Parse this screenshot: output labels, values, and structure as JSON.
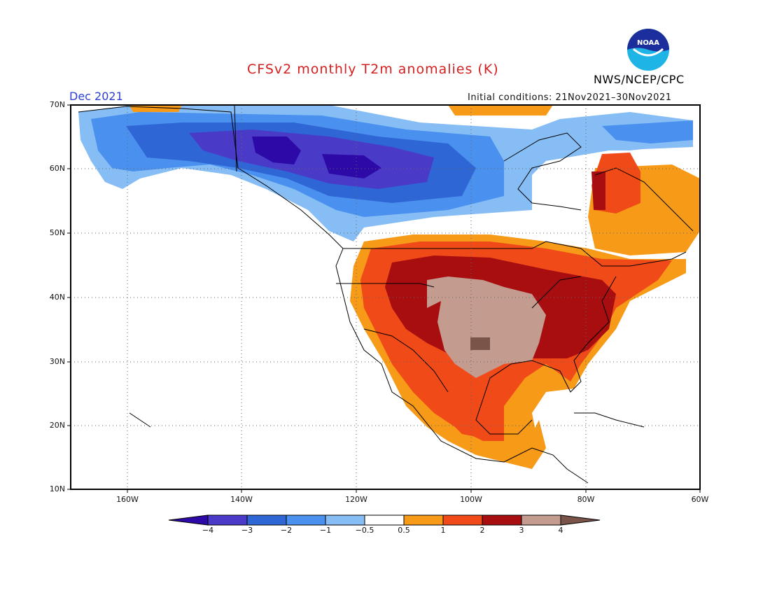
{
  "title": "CFSv2 monthly T2m anomalies (K)",
  "month": "Dec 2021",
  "agency": "NWS/NCEP/CPC",
  "init_conditions": "Initial conditions: 21Nov2021–30Nov2021",
  "logo": {
    "icon": "noaa-logo-icon",
    "text": "NOAA"
  },
  "lat_labels": [
    "70N",
    "60N",
    "50N",
    "40N",
    "30N",
    "20N",
    "10N"
  ],
  "lon_labels": [
    "160W",
    "140W",
    "120W",
    "100W",
    "80W",
    "60W"
  ],
  "colorbar": {
    "labels": [
      "−4",
      "−3",
      "−2",
      "−1",
      "−0.5",
      "0.5",
      "1",
      "2",
      "3",
      "4"
    ],
    "colors": [
      "#2d0aa8",
      "#4a3ac8",
      "#2f66d6",
      "#4a90ee",
      "#87bdf5",
      "#ffffff",
      "#f79a18",
      "#f04a18",
      "#a80e10",
      "#c49b8f",
      "#7a5448"
    ]
  }
}
